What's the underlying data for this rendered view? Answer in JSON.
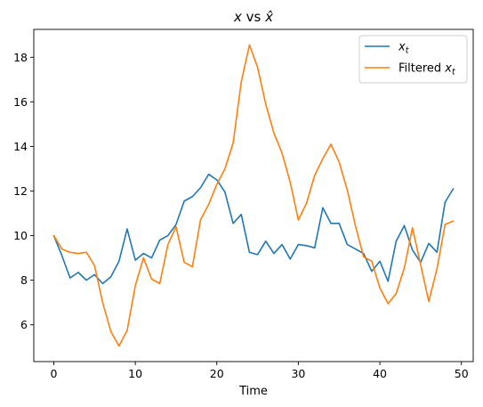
{
  "chart_data": {
    "type": "line",
    "title": "x vs x̂",
    "xlabel": "Time",
    "ylabel": "",
    "xlim": [
      -2.45,
      51.45
    ],
    "ylim": [
      4.35,
      19.25
    ],
    "xticks": [
      0,
      10,
      20,
      30,
      40,
      50
    ],
    "yticks": [
      6,
      8,
      10,
      12,
      14,
      16,
      18
    ],
    "grid": false,
    "legend": "top-right",
    "series": [
      {
        "name": "x_t",
        "color": "#1f77b4",
        "x": [
          0,
          1,
          2,
          3,
          4,
          5,
          6,
          7,
          8,
          9,
          10,
          11,
          12,
          13,
          14,
          15,
          16,
          17,
          18,
          19,
          20,
          21,
          22,
          23,
          24,
          25,
          26,
          27,
          28,
          29,
          30,
          31,
          32,
          33,
          34,
          35,
          36,
          37,
          38,
          39,
          40,
          41,
          42,
          43,
          44,
          45,
          46,
          47,
          48,
          49
        ],
        "y": [
          10.0,
          9.1,
          8.1,
          8.35,
          8.0,
          8.25,
          7.85,
          8.15,
          8.85,
          10.3,
          8.9,
          9.2,
          9.0,
          9.8,
          10.0,
          10.5,
          11.55,
          11.75,
          12.15,
          12.75,
          12.5,
          11.95,
          10.55,
          10.95,
          9.25,
          9.15,
          9.75,
          9.2,
          9.6,
          8.95,
          9.6,
          9.55,
          9.45,
          11.25,
          10.55,
          10.55,
          9.6,
          9.4,
          9.2,
          8.4,
          8.85,
          7.95,
          9.75,
          10.45,
          9.35,
          8.8,
          9.65,
          9.25,
          11.5,
          12.1
        ]
      },
      {
        "name": "Filtered x_t",
        "color": "#ff7f0e",
        "x": [
          0,
          1,
          2,
          3,
          4,
          5,
          6,
          7,
          8,
          9,
          10,
          11,
          12,
          13,
          14,
          15,
          16,
          17,
          18,
          19,
          20,
          21,
          22,
          23,
          24,
          25,
          26,
          27,
          28,
          29,
          30,
          31,
          32,
          33,
          34,
          35,
          36,
          37,
          38,
          39,
          40,
          41,
          42,
          43,
          44,
          45,
          46,
          47,
          48,
          49
        ],
        "y": [
          10.0,
          9.4,
          9.25,
          9.2,
          9.25,
          8.65,
          7.0,
          5.7,
          5.05,
          5.75,
          7.75,
          9.0,
          8.05,
          7.85,
          9.6,
          10.4,
          8.8,
          8.6,
          10.7,
          11.4,
          12.3,
          13.0,
          14.15,
          16.9,
          18.55,
          17.55,
          15.9,
          14.6,
          13.7,
          12.4,
          10.7,
          11.45,
          12.7,
          13.45,
          14.1,
          13.3,
          12.05,
          10.45,
          9.05,
          8.85,
          7.65,
          6.95,
          7.4,
          8.55,
          10.35,
          8.7,
          7.05,
          8.5,
          10.5,
          10.65
        ]
      }
    ],
    "legend_entries": [
      {
        "base": "x",
        "sub": "t"
      },
      {
        "prefix": "Filtered ",
        "base": "x",
        "sub": "t"
      }
    ]
  }
}
